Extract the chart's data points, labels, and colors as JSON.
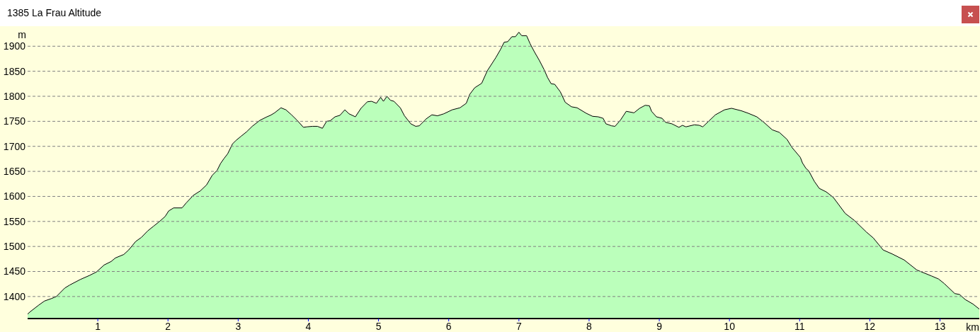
{
  "chart_data": {
    "type": "area",
    "title": "1385 La Frau Altitude",
    "xlabel": "km",
    "ylabel": "m",
    "x": [
      0,
      0.04,
      0.16,
      0.24,
      0.34,
      0.41,
      0.53,
      0.6,
      0.75,
      0.88,
      0.98,
      1.09,
      1.19,
      1.25,
      1.37,
      1.44,
      1.54,
      1.62,
      1.71,
      1.79,
      1.88,
      1.96,
      2.01,
      2.08,
      2.2,
      2.26,
      2.36,
      2.46,
      2.55,
      2.63,
      2.7,
      2.75,
      2.8,
      2.85,
      2.92,
      2.97,
      3.04,
      3.12,
      3.2,
      3.31,
      3.41,
      3.46,
      3.52,
      3.61,
      3.68,
      3.76,
      3.84,
      3.93,
      3.98,
      4.06,
      4.13,
      4.2,
      4.26,
      4.31,
      4.38,
      4.45,
      4.52,
      4.58,
      4.67,
      4.75,
      4.84,
      4.9,
      4.97,
      5.03,
      5.07,
      5.12,
      5.17,
      5.22,
      5.31,
      5.37,
      5.46,
      5.53,
      5.58,
      5.68,
      5.76,
      5.84,
      5.93,
      6.05,
      6.16,
      6.25,
      6.3,
      6.37,
      6.47,
      6.55,
      6.67,
      6.74,
      6.79,
      6.84,
      6.9,
      6.95,
      7.0,
      7.04,
      7.11,
      7.16,
      7.22,
      7.29,
      7.36,
      7.41,
      7.46,
      7.51,
      7.59,
      7.66,
      7.75,
      7.83,
      7.96,
      8.05,
      8.13,
      8.2,
      8.24,
      8.32,
      8.37,
      8.45,
      8.53,
      8.64,
      8.72,
      8.8,
      8.86,
      8.89,
      8.96,
      9.04,
      9.09,
      9.18,
      9.28,
      9.33,
      9.38,
      9.5,
      9.57,
      9.62,
      9.71,
      9.8,
      9.93,
      10.03,
      10.17,
      10.27,
      10.39,
      10.49,
      10.61,
      10.71,
      10.82,
      10.89,
      11.01,
      11.04,
      11.09,
      11.13,
      11.21,
      11.28,
      11.38,
      11.48,
      11.65,
      11.78,
      11.95,
      12.05,
      12.19,
      12.32,
      12.49,
      12.67,
      12.88,
      12.98,
      13.06,
      13.21,
      13.28,
      13.36,
      13.47,
      13.56
    ],
    "series": [
      {
        "color": "#bbffbb",
        "values": [
          1365,
          1370,
          1383,
          1391,
          1396,
          1400,
          1417,
          1423,
          1434,
          1442,
          1449,
          1463,
          1470,
          1477,
          1484,
          1493,
          1510,
          1518,
          1531,
          1540,
          1550,
          1560,
          1571,
          1577,
          1577,
          1587,
          1602,
          1611,
          1623,
          1642,
          1652,
          1666,
          1676,
          1685,
          1705,
          1712,
          1720,
          1729,
          1740,
          1752,
          1759,
          1762,
          1767,
          1777,
          1773,
          1763,
          1752,
          1738,
          1739,
          1740,
          1740,
          1736,
          1750,
          1751,
          1759,
          1762,
          1773,
          1765,
          1759,
          1776,
          1789,
          1790,
          1786,
          1798,
          1790,
          1800,
          1792,
          1790,
          1777,
          1761,
          1745,
          1740,
          1741,
          1755,
          1763,
          1761,
          1765,
          1773,
          1777,
          1786,
          1804,
          1817,
          1826,
          1851,
          1877,
          1894,
          1908,
          1909,
          1919,
          1919,
          1928,
          1921,
          1921,
          1905,
          1889,
          1872,
          1853,
          1837,
          1825,
          1824,
          1809,
          1788,
          1779,
          1777,
          1766,
          1760,
          1759,
          1756,
          1745,
          1741,
          1740,
          1753,
          1770,
          1767,
          1776,
          1782,
          1781,
          1770,
          1759,
          1756,
          1748,
          1745,
          1738,
          1742,
          1739,
          1743,
          1742,
          1739,
          1751,
          1763,
          1773,
          1776,
          1771,
          1766,
          1759,
          1748,
          1733,
          1728,
          1714,
          1698,
          1678,
          1667,
          1656,
          1651,
          1630,
          1616,
          1609,
          1598,
          1566,
          1552,
          1529,
          1517,
          1493,
          1485,
          1473,
          1453,
          1441,
          1435,
          1426,
          1406,
          1404,
          1394,
          1385,
          1375
        ]
      }
    ],
    "xlim": [
      0,
      13.56
    ],
    "xticks": [
      1,
      2,
      3,
      4,
      5,
      6,
      7,
      8,
      9,
      10,
      11,
      12,
      13
    ],
    "ylim": [
      1356,
      1940
    ],
    "yticks": [
      1400,
      1450,
      1500,
      1550,
      1600,
      1650,
      1700,
      1750,
      1800,
      1850,
      1900
    ],
    "grid": "y"
  }
}
